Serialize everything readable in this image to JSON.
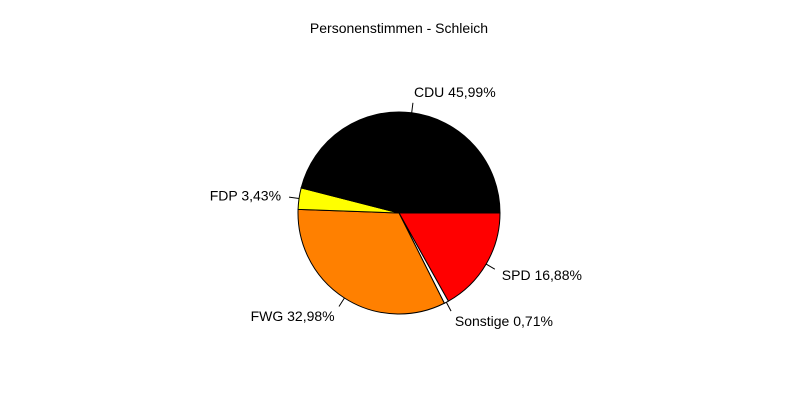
{
  "chart_data": {
    "type": "pie",
    "title": "Personenstimmen - Schleich",
    "slices": [
      {
        "label": "SPD",
        "value": 16.88,
        "display": "SPD 16,88%",
        "color": "#ff0000"
      },
      {
        "label": "Sonstige",
        "value": 0.71,
        "display": "Sonstige 0,71%",
        "color": "#ffffff"
      },
      {
        "label": "FWG",
        "value": 32.98,
        "display": "FWG 32,98%",
        "color": "#ff8000"
      },
      {
        "label": "FDP",
        "value": 3.43,
        "display": "FDP 3,43%",
        "color": "#ffff00"
      },
      {
        "label": "CDU",
        "value": 45.99,
        "display": "CDU 45,99%",
        "color": "#000000"
      }
    ],
    "start_angle_deg": 0,
    "direction": "clockwise",
    "legend": "none"
  }
}
